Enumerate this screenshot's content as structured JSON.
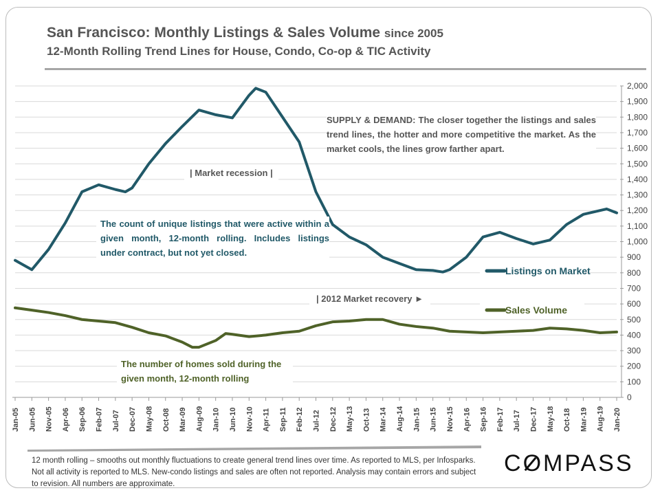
{
  "header": {
    "title": "San Francisco: Monthly Listings & Sales Volume",
    "title_suffix": "since 2005",
    "subtitle": "12-Month Rolling Trend Lines for House, Condo, Co-op & TIC Activity"
  },
  "annotations": {
    "supply_demand": "SUPPLY & DEMAND: The closer together the listings and sales trend lines, the hotter and more competitive the market. As the market cools, the lines grow farther apart.",
    "recession": "| Market recession |",
    "listings_note": "The count of unique listings that were active within a given month, 12-month rolling. Includes listings under contract, but not yet closed.",
    "recovery": "| 2012 Market recovery ►",
    "sales_note": "The number of homes sold during the given month, 12-month rolling"
  },
  "footer": {
    "note": "12 month rolling – smooths out monthly fluctuations to create general trend lines over time. As reported to MLS, per Infosparks. Not all activity is reported to MLS. New-condo listings and sales are often not reported. Analysis may contain errors and subject to revision. All numbers are approximate.",
    "logo": "COMPASS"
  },
  "chart_data": {
    "type": "line",
    "x_range": [
      "2005-01",
      "2020-01"
    ],
    "ylim": [
      0,
      2000
    ],
    "y_ticks": [
      "0",
      "100",
      "200",
      "300",
      "400",
      "500",
      "600",
      "700",
      "800",
      "900",
      "1,000",
      "1,100",
      "1,200",
      "1,300",
      "1,400",
      "1,500",
      "1,600",
      "1,700",
      "1,800",
      "1,900",
      "2,000"
    ],
    "y_axis_side": "right",
    "grid": true,
    "legend_placement": "right",
    "x_tick_labels": [
      "Jan-05",
      "Jun-05",
      "Nov-05",
      "Apr-06",
      "Sep-06",
      "Feb-07",
      "Jul-07",
      "Dec-07",
      "May-08",
      "Oct-08",
      "Mar-09",
      "Aug-09",
      "Jan-10",
      "Jun-10",
      "Nov-10",
      "Apr-11",
      "Sep-11",
      "Feb-12",
      "Jul-12",
      "Dec-12",
      "May-13",
      "Oct-13",
      "Mar-14",
      "Aug-14",
      "Jan-15",
      "Jun-15",
      "Nov-15",
      "Apr-16",
      "Sep-16",
      "Feb-17",
      "Jul-17",
      "Dec-17",
      "May-18",
      "Oct-18",
      "Mar-19",
      "Aug-19",
      "Jan-20"
    ],
    "series": [
      {
        "name": "Listings on Market",
        "color": "#215968",
        "points": [
          [
            "2005-01",
            880
          ],
          [
            "2005-06",
            820
          ],
          [
            "2005-11",
            950
          ],
          [
            "2006-04",
            1120
          ],
          [
            "2006-09",
            1320
          ],
          [
            "2007-02",
            1365
          ],
          [
            "2007-07",
            1335
          ],
          [
            "2007-10",
            1320
          ],
          [
            "2007-12",
            1345
          ],
          [
            "2008-05",
            1500
          ],
          [
            "2008-10",
            1630
          ],
          [
            "2009-03",
            1740
          ],
          [
            "2009-08",
            1845
          ],
          [
            "2010-01",
            1815
          ],
          [
            "2010-06",
            1795
          ],
          [
            "2010-11",
            1940
          ],
          [
            "2011-01",
            1985
          ],
          [
            "2011-04",
            1960
          ],
          [
            "2011-09",
            1800
          ],
          [
            "2012-02",
            1640
          ],
          [
            "2012-07",
            1320
          ],
          [
            "2012-12",
            1110
          ],
          [
            "2013-05",
            1030
          ],
          [
            "2013-10",
            980
          ],
          [
            "2014-03",
            900
          ],
          [
            "2014-08",
            860
          ],
          [
            "2015-01",
            820
          ],
          [
            "2015-06",
            815
          ],
          [
            "2015-09",
            805
          ],
          [
            "2015-11",
            820
          ],
          [
            "2016-04",
            900
          ],
          [
            "2016-09",
            1030
          ],
          [
            "2017-02",
            1060
          ],
          [
            "2017-07",
            1020
          ],
          [
            "2017-12",
            985
          ],
          [
            "2018-05",
            1010
          ],
          [
            "2018-10",
            1110
          ],
          [
            "2019-03",
            1175
          ],
          [
            "2019-08",
            1200
          ],
          [
            "2019-10",
            1210
          ],
          [
            "2020-01",
            1185
          ]
        ]
      },
      {
        "name": "Sales Volume",
        "color": "#4f6228",
        "points": [
          [
            "2005-01",
            575
          ],
          [
            "2005-06",
            560
          ],
          [
            "2005-11",
            545
          ],
          [
            "2006-04",
            525
          ],
          [
            "2006-09",
            500
          ],
          [
            "2007-02",
            490
          ],
          [
            "2007-07",
            480
          ],
          [
            "2007-12",
            450
          ],
          [
            "2008-05",
            415
          ],
          [
            "2008-10",
            395
          ],
          [
            "2009-03",
            355
          ],
          [
            "2009-06",
            322
          ],
          [
            "2009-08",
            322
          ],
          [
            "2010-01",
            365
          ],
          [
            "2010-04",
            410
          ],
          [
            "2010-06",
            405
          ],
          [
            "2010-11",
            390
          ],
          [
            "2011-04",
            400
          ],
          [
            "2011-09",
            415
          ],
          [
            "2012-02",
            425
          ],
          [
            "2012-07",
            460
          ],
          [
            "2012-12",
            485
          ],
          [
            "2013-05",
            490
          ],
          [
            "2013-10",
            500
          ],
          [
            "2014-03",
            500
          ],
          [
            "2014-08",
            470
          ],
          [
            "2015-01",
            455
          ],
          [
            "2015-06",
            445
          ],
          [
            "2015-11",
            425
          ],
          [
            "2016-04",
            420
          ],
          [
            "2016-09",
            415
          ],
          [
            "2017-02",
            420
          ],
          [
            "2017-07",
            425
          ],
          [
            "2017-12",
            430
          ],
          [
            "2018-05",
            445
          ],
          [
            "2018-10",
            440
          ],
          [
            "2019-03",
            430
          ],
          [
            "2019-08",
            415
          ],
          [
            "2020-01",
            420
          ]
        ]
      }
    ]
  }
}
